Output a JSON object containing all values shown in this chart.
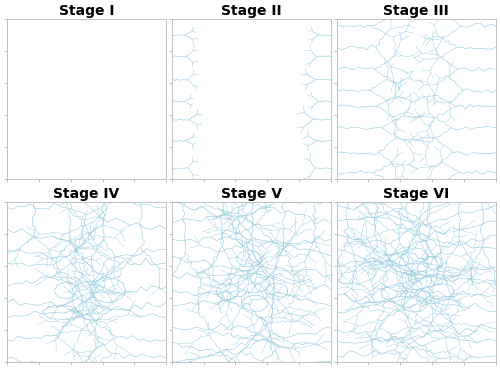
{
  "titles": [
    "Stage I",
    "Stage II",
    "Stage III",
    "Stage IV",
    "Stage V",
    "Stage VI"
  ],
  "grid_rows": 2,
  "grid_cols": 3,
  "vessel_color": "#8ec8de",
  "vessel_linewidth": 0.4,
  "background_color": "#ffffff",
  "title_fontsize": 10,
  "title_fontweight": "bold",
  "figsize": [
    5.0,
    3.69
  ],
  "dpi": 100,
  "stages": [
    1,
    2,
    3,
    4,
    5,
    6
  ]
}
